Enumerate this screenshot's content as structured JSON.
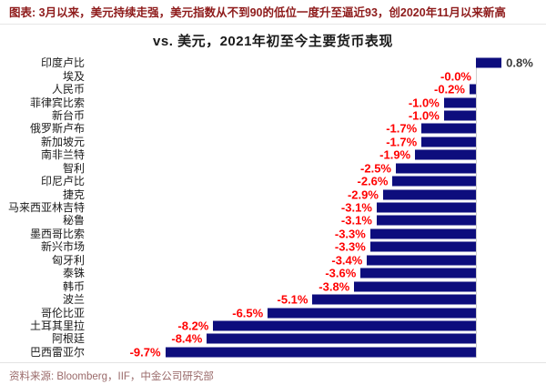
{
  "header": {
    "title": "图表: 3月以来，美元持续走强，美元指数从不到90的低位一度升至逼近93，创2020年11月以来新高",
    "color": "#8E1B1B"
  },
  "chart_data": {
    "type": "bar",
    "orientation": "horizontal",
    "title": "vs. 美元，2021年初至今主要货币表现",
    "unit": "%",
    "categories": [
      "印度卢比",
      "埃及",
      "人民币",
      "菲律宾比索",
      "新台币",
      "俄罗斯卢布",
      "新加坡元",
      "南非兰特",
      "智利",
      "印尼卢比",
      "捷克",
      "马来西亚林吉特",
      "秘鲁",
      "墨西哥比索",
      "新兴市场",
      "匈牙利",
      "泰铢",
      "韩币",
      "波兰",
      "哥伦比亚",
      "土耳其里拉",
      "阿根廷",
      "巴西雷亚尔"
    ],
    "values": [
      0.8,
      -0.0,
      -0.2,
      -1.0,
      -1.0,
      -1.7,
      -1.7,
      -1.9,
      -2.5,
      -2.6,
      -2.9,
      -3.1,
      -3.1,
      -3.3,
      -3.3,
      -3.4,
      -3.6,
      -3.8,
      -5.1,
      -6.5,
      -8.2,
      -8.4,
      -9.7
    ],
    "labels": [
      "0.8%",
      "-0.0%",
      "-0.2%",
      "-1.0%",
      "-1.0%",
      "-1.7%",
      "-1.7%",
      "-1.9%",
      "-2.5%",
      "-2.6%",
      "-2.9%",
      "-3.1%",
      "-3.1%",
      "-3.3%",
      "-3.3%",
      "-3.4%",
      "-3.6%",
      "-3.8%",
      "-5.1%",
      "-6.5%",
      "-8.2%",
      "-8.4%",
      "-9.7%"
    ],
    "xlim": [
      -12.0,
      2.2
    ],
    "grid": false,
    "legend": "none",
    "bar_color": "#0D0D7D",
    "negative_label_color": "#FF0000",
    "positive_label_color": "#3A3A3A",
    "axis_color": "#CFCFCF"
  },
  "footer": {
    "source": "资料来源: Bloomberg，IIF，中金公司研究部",
    "color": "#9A6A6A"
  }
}
